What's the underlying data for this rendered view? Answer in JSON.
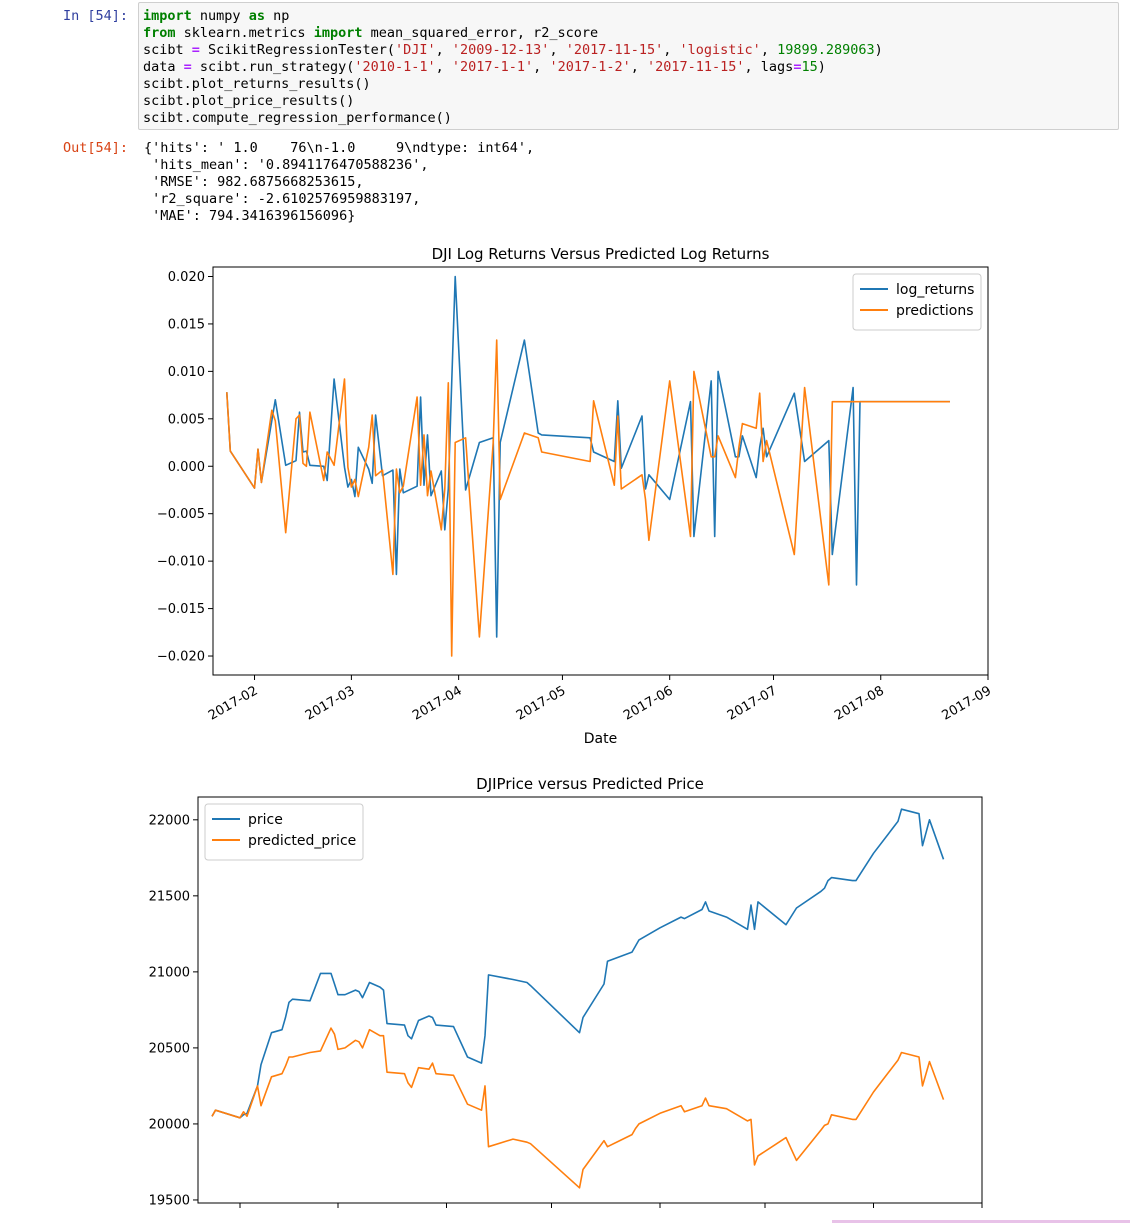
{
  "cell": {
    "in_prompt": "In [54]:",
    "out_prompt": "Out[54]:",
    "code_lines": [
      [
        {
          "t": "import",
          "c": "kw"
        },
        {
          "t": " numpy "
        },
        {
          "t": "as",
          "c": "kw"
        },
        {
          "t": " np"
        }
      ],
      [
        {
          "t": "from",
          "c": "kw"
        },
        {
          "t": " sklearn.metrics "
        },
        {
          "t": "import",
          "c": "kw"
        },
        {
          "t": " mean_squared_error, r2_score"
        }
      ],
      [
        {
          "t": "scibt "
        },
        {
          "t": "=",
          "c": "op"
        },
        {
          "t": " ScikitRegressionTester("
        },
        {
          "t": "'DJI'",
          "c": "str"
        },
        {
          "t": ", "
        },
        {
          "t": "'2009-12-13'",
          "c": "str"
        },
        {
          "t": ", "
        },
        {
          "t": "'2017-11-15'",
          "c": "str"
        },
        {
          "t": ", "
        },
        {
          "t": "'logistic'",
          "c": "str"
        },
        {
          "t": ", "
        },
        {
          "t": "19899.289063",
          "c": "num"
        },
        {
          "t": ")"
        }
      ],
      [
        {
          "t": "data "
        },
        {
          "t": "=",
          "c": "op"
        },
        {
          "t": " scibt.run_strategy("
        },
        {
          "t": "'2010-1-1'",
          "c": "str"
        },
        {
          "t": ", "
        },
        {
          "t": "'2017-1-1'",
          "c": "str"
        },
        {
          "t": ", "
        },
        {
          "t": "'2017-1-2'",
          "c": "str"
        },
        {
          "t": ", "
        },
        {
          "t": "'2017-11-15'",
          "c": "str"
        },
        {
          "t": ", lags"
        },
        {
          "t": "=",
          "c": "op"
        },
        {
          "t": "15",
          "c": "num"
        },
        {
          "t": ")"
        }
      ],
      [
        {
          "t": "scibt.plot_returns_results()"
        }
      ],
      [
        {
          "t": "scibt.plot_price_results()"
        }
      ],
      [
        {
          "t": "scibt.compute_regression_performance()"
        }
      ]
    ],
    "output_lines": [
      "{'hits': ' 1.0    76\\n-1.0     9\\ndtype: int64',",
      " 'hits_mean': '0.8941176470588236',",
      " 'RMSE': 982.6875668253615,",
      " 'r2_square': -2.6102576959883197,",
      " 'MAE': 794.3416396156096}"
    ]
  },
  "chart_data": [
    {
      "type": "line",
      "title": "DJI Log Returns Versus Predicted Log Returns",
      "xlabel": "Date",
      "ylabel": "",
      "x_is_date": true,
      "ylim": [
        -0.022,
        0.021
      ],
      "xlim": [
        "2017-01-20",
        "2017-09-01"
      ],
      "yticks": [
        -0.02,
        -0.015,
        -0.01,
        -0.005,
        0.0,
        0.005,
        0.01,
        0.015,
        0.02
      ],
      "ytick_labels": [
        "−0.020",
        "−0.015",
        "−0.010",
        "−0.005",
        "0.000",
        "0.005",
        "0.010",
        "0.015",
        "0.020"
      ],
      "xticks": [
        "2017-02-01",
        "2017-03-01",
        "2017-04-01",
        "2017-05-01",
        "2017-06-01",
        "2017-07-01",
        "2017-08-01",
        "2017-09-01"
      ],
      "xtick_labels": [
        "2017-02",
        "2017-03",
        "2017-04",
        "2017-05",
        "2017-06",
        "2017-07",
        "2017-08",
        "2017-09"
      ],
      "legend": "top-right",
      "x": [
        "2017-01-24",
        "2017-01-25",
        "2017-02-01",
        "2017-02-02",
        "2017-02-03",
        "2017-02-06",
        "2017-02-07",
        "2017-02-10",
        "2017-02-13",
        "2017-02-14",
        "2017-02-15",
        "2017-02-16",
        "2017-02-17",
        "2017-02-21",
        "2017-02-22",
        "2017-02-24",
        "2017-02-27",
        "2017-02-28",
        "2017-03-01",
        "2017-03-02",
        "2017-03-03",
        "2017-03-06",
        "2017-03-07",
        "2017-03-08",
        "2017-03-10",
        "2017-03-13",
        "2017-03-14",
        "2017-03-15",
        "2017-03-16",
        "2017-03-20",
        "2017-03-21",
        "2017-03-22",
        "2017-03-23",
        "2017-03-24",
        "2017-03-27",
        "2017-03-28",
        "2017-03-29",
        "2017-03-30",
        "2017-03-31",
        "2017-04-03",
        "2017-04-07",
        "2017-04-11",
        "2017-04-12",
        "2017-04-13",
        "2017-04-20",
        "2017-04-24",
        "2017-04-25",
        "2017-05-09",
        "2017-05-10",
        "2017-05-16",
        "2017-05-17",
        "2017-05-18",
        "2017-05-24",
        "2017-05-25",
        "2017-05-26",
        "2017-06-01",
        "2017-06-07",
        "2017-06-08",
        "2017-06-13",
        "2017-06-14",
        "2017-06-15",
        "2017-06-20",
        "2017-06-21",
        "2017-06-22",
        "2017-06-26",
        "2017-06-27",
        "2017-06-28",
        "2017-06-29",
        "2017-07-07",
        "2017-07-10",
        "2017-07-17",
        "2017-07-18",
        "2017-07-24",
        "2017-07-25",
        "2017-07-26",
        "2017-07-27",
        "2017-08-01",
        "2017-08-02",
        "2017-08-09",
        "2017-08-10",
        "2017-08-14",
        "2017-08-15",
        "2017-08-17",
        "2017-08-18",
        "2017-08-21"
      ],
      "series": [
        {
          "name": "log_returns",
          "color": "#1f77b4",
          "values": [
            0.0078,
            0.0016,
            -0.0023,
            0.0018,
            -0.0017,
            0.0048,
            0.007,
            0.0001,
            0.0006,
            0.0057,
            0.0015,
            0.0016,
            0.0001,
            0.0,
            -0.0015,
            0.0092,
            -0.0001,
            -0.0022,
            -0.0014,
            -0.0032,
            0.002,
            -0.0003,
            -0.0018,
            0.0054,
            -0.001,
            -0.0004,
            -0.0114,
            -0.0003,
            -0.0028,
            -0.0021,
            0.0073,
            -0.002,
            0.0033,
            -0.0031,
            -0.0005,
            -0.0067,
            -0.0024,
            0.0088,
            0.02,
            -0.0025,
            0.0025,
            0.003,
            -0.018,
            0.0025,
            0.0133,
            0.0035,
            0.0033,
            0.003,
            0.0015,
            0.0005,
            0.0069,
            -0.0002,
            0.0053,
            -0.0024,
            -0.0009,
            -0.0035,
            0.0068,
            -0.0074,
            0.009,
            -0.0074,
            0.01,
            0.001,
            0.001,
            0.0032,
            -0.0012,
            0.002,
            0.004,
            0.001,
            0.0077,
            0.0005,
            0.0027,
            -0.0093,
            0.0083,
            -0.0125,
            0.0068,
            0.0068,
            0.0068,
            0.0068,
            0.0068,
            0.0068,
            0.0068,
            0.0068,
            0.0068,
            0.0068,
            0.0068
          ]
        },
        {
          "name": "predictions",
          "color": "#ff7f0e",
          "values": [
            0.0078,
            0.0016,
            -0.0023,
            0.0018,
            -0.0017,
            0.0059,
            0.0048,
            -0.007,
            0.005,
            0.0054,
            0.0003,
            0.0,
            0.0057,
            -0.0015,
            0.0015,
            0.0001,
            0.0092,
            -0.0001,
            -0.0022,
            -0.0014,
            -0.0032,
            0.002,
            0.0054,
            -0.001,
            -0.0004,
            -0.0114,
            -0.0003,
            -0.0028,
            -0.0021,
            0.0073,
            -0.002,
            0.0033,
            -0.0031,
            -0.0005,
            -0.0067,
            -0.0024,
            0.0088,
            -0.02,
            0.0025,
            0.003,
            -0.018,
            0.0025,
            0.0133,
            -0.0035,
            0.0035,
            0.003,
            0.0015,
            0.0005,
            0.0069,
            -0.002,
            0.0053,
            -0.0024,
            -0.0009,
            -0.0035,
            -0.0078,
            0.009,
            -0.0074,
            0.01,
            0.001,
            0.001,
            0.0032,
            -0.0012,
            0.002,
            0.0045,
            0.004,
            0.0077,
            0.0005,
            0.0027,
            -0.0093,
            0.0083,
            -0.0125,
            0.0068,
            0.0068,
            0.0068,
            0.0068,
            0.0068,
            0.0068,
            0.0068,
            0.0068,
            0.0068,
            0.0068,
            0.0068,
            0.0068,
            0.0068,
            0.0068
          ]
        }
      ]
    },
    {
      "type": "line",
      "title": "DJIPrice versus Predicted Price",
      "xlabel": "",
      "ylabel": "",
      "x_is_date": true,
      "ylim": [
        19480,
        22150
      ],
      "xlim": [
        "2017-01-20",
        "2017-09-01"
      ],
      "yticks": [
        19500,
        20000,
        20500,
        21000,
        21500,
        22000
      ],
      "ytick_labels": [
        "19500",
        "20000",
        "20500",
        "21000",
        "21500",
        "22000"
      ],
      "xticks": [
        "2017-02-01",
        "2017-03-01",
        "2017-04-01",
        "2017-05-01",
        "2017-06-01",
        "2017-07-01",
        "2017-08-01",
        "2017-09-01"
      ],
      "legend": "top-left",
      "x": [
        "2017-01-24",
        "2017-01-25",
        "2017-02-01",
        "2017-02-02",
        "2017-02-03",
        "2017-02-06",
        "2017-02-07",
        "2017-02-10",
        "2017-02-13",
        "2017-02-14",
        "2017-02-15",
        "2017-02-16",
        "2017-02-21",
        "2017-02-24",
        "2017-02-27",
        "2017-02-28",
        "2017-03-01",
        "2017-03-03",
        "2017-03-06",
        "2017-03-07",
        "2017-03-08",
        "2017-03-10",
        "2017-03-13",
        "2017-03-14",
        "2017-03-15",
        "2017-03-20",
        "2017-03-21",
        "2017-03-22",
        "2017-03-24",
        "2017-03-27",
        "2017-03-28",
        "2017-03-29",
        "2017-04-03",
        "2017-04-07",
        "2017-04-11",
        "2017-04-12",
        "2017-04-13",
        "2017-04-20",
        "2017-04-24",
        "2017-04-25",
        "2017-05-09",
        "2017-05-10",
        "2017-05-16",
        "2017-05-17",
        "2017-05-24",
        "2017-05-25",
        "2017-05-26",
        "2017-06-01",
        "2017-06-07",
        "2017-06-08",
        "2017-06-13",
        "2017-06-14",
        "2017-06-15",
        "2017-06-20",
        "2017-06-26",
        "2017-06-27",
        "2017-06-28",
        "2017-06-29",
        "2017-07-07",
        "2017-07-10",
        "2017-07-17",
        "2017-07-18",
        "2017-07-19",
        "2017-07-20",
        "2017-07-26",
        "2017-07-27",
        "2017-08-01",
        "2017-08-07",
        "2017-08-08",
        "2017-08-09",
        "2017-08-14",
        "2017-08-15",
        "2017-08-17",
        "2017-08-21"
      ],
      "series": [
        {
          "name": "price",
          "color": "#1f77b4",
          "values": [
            20050,
            20090,
            20040,
            20060,
            20070,
            20250,
            20390,
            20600,
            20620,
            20700,
            20800,
            20820,
            20810,
            20990,
            20990,
            20920,
            20850,
            20850,
            20880,
            20870,
            20830,
            20930,
            20900,
            20880,
            20660,
            20650,
            20580,
            20560,
            20680,
            20710,
            20700,
            20650,
            20640,
            20440,
            20400,
            20580,
            20980,
            20950,
            20930,
            20910,
            20600,
            20700,
            20920,
            21070,
            21130,
            21170,
            21210,
            21290,
            21360,
            21350,
            21410,
            21460,
            21400,
            21360,
            21280,
            21440,
            21280,
            21460,
            21310,
            21420,
            21530,
            21550,
            21600,
            21620,
            21600,
            21600,
            21780,
            21960,
            21990,
            22070,
            22040,
            21830,
            22000,
            21740
          ]
        },
        {
          "name": "predicted_price",
          "color": "#ff7f0e",
          "values": [
            20050,
            20090,
            20040,
            20080,
            20050,
            20250,
            20120,
            20310,
            20330,
            20380,
            20440,
            20440,
            20470,
            20480,
            20630,
            20590,
            20490,
            20500,
            20550,
            20540,
            20500,
            20620,
            20580,
            20580,
            20340,
            20330,
            20270,
            20240,
            20370,
            20360,
            20400,
            20330,
            20320,
            20130,
            20090,
            20250,
            19850,
            19900,
            19880,
            19870,
            19580,
            19700,
            19890,
            19850,
            19930,
            19970,
            20000,
            20070,
            20120,
            20080,
            20120,
            20170,
            20120,
            20100,
            20020,
            20030,
            19730,
            19790,
            19910,
            19760,
            19960,
            19990,
            20000,
            20060,
            20030,
            20030,
            20210,
            20390,
            20420,
            20470,
            20440,
            20250,
            20410,
            20160
          ]
        }
      ]
    }
  ]
}
